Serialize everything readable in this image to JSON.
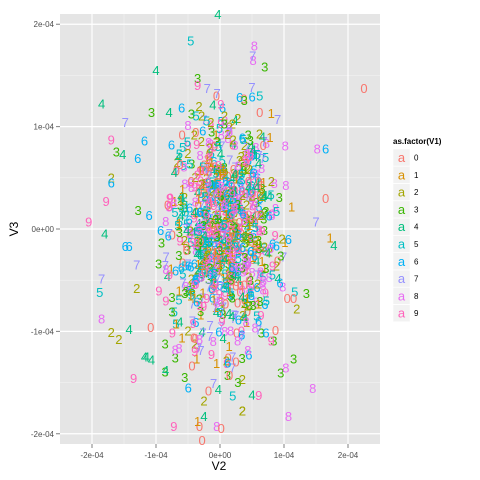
{
  "chart_data": {
    "type": "scatter",
    "title": "",
    "xlabel": "V2",
    "ylabel": "V3",
    "xlim": [
      -0.00025,
      0.00025
    ],
    "ylim": [
      -0.00021,
      0.00021
    ],
    "x_ticks": [
      {
        "value": -0.0002,
        "label": "-2e-04"
      },
      {
        "value": -0.0001,
        "label": "-1e-04"
      },
      {
        "value": 0,
        "label": "0e+00"
      },
      {
        "value": 0.0001,
        "label": "1e-04"
      },
      {
        "value": 0.0002,
        "label": "2e-04"
      }
    ],
    "y_ticks": [
      {
        "value": -0.0002,
        "label": "-2e-04"
      },
      {
        "value": -0.0001,
        "label": "-1e-04"
      },
      {
        "value": 0,
        "label": "0e+00"
      },
      {
        "value": 0.0001,
        "label": "1e-04"
      },
      {
        "value": 0.0002,
        "label": "2e-04"
      }
    ],
    "grid": true,
    "legend": {
      "title": "as.factor(V1)",
      "placement": "right",
      "entries": [
        {
          "label": "0",
          "color": "#F8766D"
        },
        {
          "label": "1",
          "color": "#D89000"
        },
        {
          "label": "2",
          "color": "#A3A500"
        },
        {
          "label": "3",
          "color": "#39B600"
        },
        {
          "label": "4",
          "color": "#00BF7D"
        },
        {
          "label": "5",
          "color": "#00BFC4"
        },
        {
          "label": "6",
          "color": "#00B0F6"
        },
        {
          "label": "7",
          "color": "#9590FF"
        },
        {
          "label": "8",
          "color": "#E76BF3"
        },
        {
          "label": "9",
          "color": "#FF62BC"
        }
      ]
    },
    "outlier_points": [
      {
        "g": "0",
        "x": 0.000225,
        "y": 0.000137
      },
      {
        "g": "3",
        "x": 7e-05,
        "y": 0.000158
      },
      {
        "g": "4",
        "x": -0.0001,
        "y": 0.000155
      },
      {
        "g": "3",
        "x": -3.5e-05,
        "y": 0.000147
      },
      {
        "g": "4",
        "x": -0.000185,
        "y": 0.000122
      },
      {
        "g": "3",
        "x": -0.000107,
        "y": 0.000114
      },
      {
        "g": "9",
        "x": -3.5e-05,
        "y": 0.00014
      },
      {
        "g": "7",
        "x": 5e-05,
        "y": 0.000138
      },
      {
        "g": "5",
        "x": 6.2e-05,
        "y": 0.00013
      },
      {
        "g": "6",
        "x": -6e-05,
        "y": 0.000118
      },
      {
        "g": "0",
        "x": 6.2e-05,
        "y": 0.000114
      },
      {
        "g": "1",
        "x": 8e-05,
        "y": 0.000113
      },
      {
        "g": "7",
        "x": 9e-05,
        "y": 0.000107
      },
      {
        "g": "7",
        "x": -0.000148,
        "y": 0.000104
      },
      {
        "g": "9",
        "x": -0.00017,
        "y": 8.7e-05
      },
      {
        "g": "6",
        "x": -0.000118,
        "y": 8.6e-05
      },
      {
        "g": "8",
        "x": 0.000152,
        "y": 7.8e-05
      },
      {
        "g": "6",
        "x": 0.000165,
        "y": 7.8e-05
      },
      {
        "g": "3",
        "x": -0.000162,
        "y": 7.5e-05
      },
      {
        "g": "4",
        "x": -0.000152,
        "y": 7.3e-05
      },
      {
        "g": "2",
        "x": -0.00017,
        "y": 5e-05
      },
      {
        "g": "6",
        "x": -0.00017,
        "y": 4.5e-05
      },
      {
        "g": "0",
        "x": 0.000165,
        "y": 3e-05
      },
      {
        "g": "9",
        "x": -0.000178,
        "y": 2.7e-05
      },
      {
        "g": "3",
        "x": -0.000128,
        "y": 1.8e-05
      },
      {
        "g": "9",
        "x": -0.000205,
        "y": 7e-06
      },
      {
        "g": "7",
        "x": 0.00015,
        "y": 7e-06
      },
      {
        "g": "4",
        "x": -0.00018,
        "y": -5e-06
      },
      {
        "g": "1",
        "x": 0.000172,
        "y": -9e-06
      },
      {
        "g": "4",
        "x": 0.000178,
        "y": -1.6e-05
      },
      {
        "g": "6",
        "x": -0.000148,
        "y": -1.7e-05
      },
      {
        "g": "6",
        "x": -0.000142,
        "y": -1.7e-05
      },
      {
        "g": "7",
        "x": -0.00013,
        "y": -3.5e-05
      },
      {
        "g": "7",
        "x": -0.000185,
        "y": -4.9e-05
      },
      {
        "g": "5",
        "x": -0.000188,
        "y": -6.2e-05
      },
      {
        "g": "2",
        "x": -0.00013,
        "y": -5.8e-05
      },
      {
        "g": "3",
        "x": 0.000135,
        "y": -6.3e-05
      },
      {
        "g": "0",
        "x": 0.000105,
        "y": -6.8e-05
      },
      {
        "g": "0",
        "x": 0.000115,
        "y": -6.8e-05
      },
      {
        "g": "2",
        "x": 0.00012,
        "y": -7.8e-05
      },
      {
        "g": "8",
        "x": -0.000185,
        "y": -8.8e-05
      },
      {
        "g": "2",
        "x": -0.00017,
        "y": -0.000101
      },
      {
        "g": "4",
        "x": -0.000142,
        "y": -9.8e-05
      },
      {
        "g": "2",
        "x": -0.000158,
        "y": -0.000108
      },
      {
        "g": "4",
        "x": -0.000118,
        "y": -0.000125
      },
      {
        "g": "4",
        "x": -0.000115,
        "y": -0.000125
      },
      {
        "g": "3",
        "x": 0.000115,
        "y": -0.000127
      },
      {
        "g": "9",
        "x": -0.000135,
        "y": -0.000146
      },
      {
        "g": "8",
        "x": 0.000145,
        "y": -0.000156
      },
      {
        "g": "0",
        "x": -1.8e-05,
        "y": -0.000158
      },
      {
        "g": "2",
        "x": -2.5e-05,
        "y": -0.000168
      },
      {
        "g": "4",
        "x": -2.5e-05,
        "y": -0.000183
      },
      {
        "g": "2",
        "x": 3.5e-05,
        "y": -0.000178
      },
      {
        "g": "5",
        "x": 2e-05,
        "y": -0.000163
      },
      {
        "g": "4",
        "x": 5e-05,
        "y": -0.000162
      },
      {
        "g": "2",
        "x": 3.5e-05,
        "y": -0.000147
      },
      {
        "g": "2",
        "x": 1e-05,
        "y": -0.000129
      },
      {
        "g": "7",
        "x": 2e-05,
        "y": -0.000125
      },
      {
        "g": "0",
        "x": 2.5e-05,
        "y": -0.00013
      },
      {
        "g": "0",
        "x": 1.5e-05,
        "y": -0.000143
      },
      {
        "g": "8",
        "x": 0.000103,
        "y": -0.000136
      },
      {
        "g": "9",
        "x": -7.2e-05,
        "y": -0.000193
      },
      {
        "g": "0",
        "x": -3.2e-05,
        "y": -0.000193
      },
      {
        "g": "1",
        "x": -3.5e-05,
        "y": -0.000188
      },
      {
        "g": "8",
        "x": -5e-06,
        "y": -0.000193
      },
      {
        "g": "0",
        "x": 2e-06,
        "y": -0.000195
      },
      {
        "g": "2",
        "x": 3.5e-05,
        "y": -0.000178
      },
      {
        "g": "8",
        "x": 0.000107,
        "y": -0.000183
      },
      {
        "g": "3",
        "x": -5.5e-05,
        "y": -0.000145
      },
      {
        "g": "4",
        "x": -8.5e-05,
        "y": -0.000138
      },
      {
        "g": "4",
        "x": -0.000107,
        "y": -0.000128
      },
      {
        "g": "3",
        "x": -7e-05,
        "y": -0.000126
      },
      {
        "g": "8",
        "x": -7e-05,
        "y": -0.000118
      },
      {
        "g": "6",
        "x": 1.2e-05,
        "y": -0.000131
      },
      {
        "g": "3",
        "x": 2.8e-05,
        "y": -0.00015
      },
      {
        "g": "8",
        "x": -3.2e-05,
        "y": -0.000108
      }
    ],
    "cluster": {
      "center_x": 5e-06,
      "center_y": 0.0,
      "sd_x": 4e-05,
      "sd_y": 5.5e-05,
      "count": 1000
    }
  }
}
